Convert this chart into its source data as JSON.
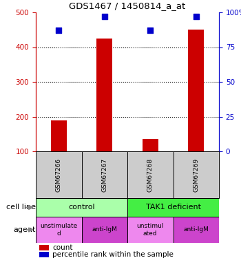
{
  "title": "GDS1467 / 1450814_a_at",
  "samples": [
    "GSM67266",
    "GSM67267",
    "GSM67268",
    "GSM67269"
  ],
  "counts": [
    190,
    425,
    135,
    450
  ],
  "percentiles": [
    87,
    97,
    87,
    97
  ],
  "ylim_left": [
    100,
    500
  ],
  "ylim_right": [
    0,
    100
  ],
  "yticks_left": [
    100,
    200,
    300,
    400,
    500
  ],
  "yticks_right": [
    0,
    25,
    50,
    75,
    100
  ],
  "ytick_labels_right": [
    "0",
    "25",
    "50",
    "75",
    "100%"
  ],
  "bar_color": "#cc0000",
  "dot_color": "#0000cc",
  "cell_line_labels": [
    "control",
    "TAK1 deficient"
  ],
  "cell_line_spans": [
    [
      0,
      2
    ],
    [
      2,
      4
    ]
  ],
  "cell_line_color_light": "#aaffaa",
  "cell_line_color_dark": "#44ee44",
  "agent_labels": [
    "unstimulate\nd",
    "anti-IgM",
    "unstimul\nated",
    "anti-IgM"
  ],
  "agent_colors_alt": [
    "#ee88ee",
    "#cc44cc",
    "#ee88ee",
    "#cc44cc"
  ],
  "sample_box_color": "#cccccc",
  "left_axis_color": "#cc0000",
  "right_axis_color": "#0000cc",
  "n_samples": 4,
  "bar_width": 0.35,
  "dot_size": 30
}
